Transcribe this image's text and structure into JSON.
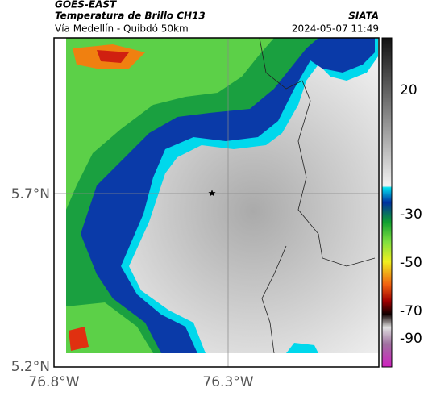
{
  "header": {
    "title": "GOES-EAST",
    "subtitle": "Temperatura de Brillo CH13",
    "route": "Vía Medellín - Quibdó 50km",
    "source": "SIATA",
    "datetime": "2024-05-07 11:49"
  },
  "map": {
    "lat_labels": [
      "5.7°N",
      "5.2°N"
    ],
    "lon_labels": [
      "76.8°W",
      "76.3°W"
    ]
  },
  "colorbar": {
    "ticks": [
      20,
      -30,
      -50,
      -70,
      -90
    ]
  }
}
